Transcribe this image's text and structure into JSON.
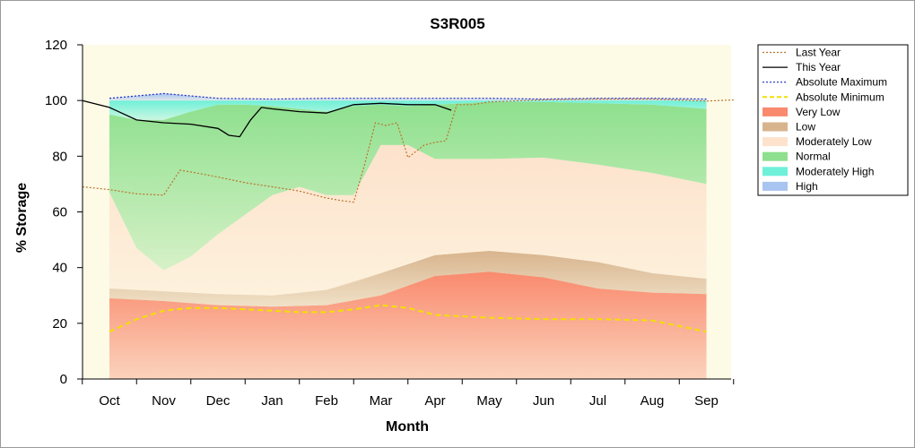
{
  "chart_data": {
    "type": "area",
    "title": "S3R005",
    "xlabel": "Month",
    "ylabel": "% Storage",
    "ylim": [
      0,
      120
    ],
    "yticks": [
      0,
      20,
      40,
      60,
      80,
      100,
      120
    ],
    "categories": [
      "Oct",
      "Nov",
      "Dec",
      "Jan",
      "Feb",
      "Mar",
      "Apr",
      "May",
      "Jun",
      "Jul",
      "Aug",
      "Sep"
    ],
    "x_units": "month index (0 = Oct, 11 = Sep)",
    "legend_position": "right",
    "bands": [
      {
        "name": "Very Low",
        "color": "#f98a6e",
        "x": [
          0,
          1,
          2,
          3,
          4,
          5,
          6,
          7,
          8,
          9,
          10,
          11
        ],
        "lower": [
          0,
          0,
          0,
          0,
          0,
          0,
          0,
          0,
          0,
          0,
          0,
          0
        ],
        "upper": [
          29,
          28,
          26.5,
          26,
          26.5,
          30,
          37,
          38.5,
          36.5,
          32.5,
          31,
          30.5
        ]
      },
      {
        "name": "Low",
        "color": "#d8b48e",
        "x": [
          0,
          1,
          2,
          3,
          4,
          5,
          6,
          7,
          8,
          9,
          10,
          11
        ],
        "lower": [
          29,
          28,
          26.5,
          26,
          26.5,
          30,
          37,
          38.5,
          36.5,
          32.5,
          31,
          30.5
        ],
        "upper": [
          32.5,
          31.5,
          30.5,
          30,
          32,
          38,
          44.5,
          46,
          44.5,
          42,
          38,
          36
        ]
      },
      {
        "name": "Moderately Low",
        "color": "#fde2cc",
        "x": [
          0,
          0.5,
          1,
          1.5,
          2,
          2.5,
          3,
          3.5,
          4,
          4.5,
          5,
          5.5,
          6,
          7,
          8,
          9,
          10,
          11
        ],
        "lower": [
          32.5,
          32,
          31.5,
          31,
          30.5,
          30.2,
          30,
          30.8,
          32,
          34.5,
          38,
          41.5,
          44.5,
          46,
          44.5,
          42,
          38,
          36
        ],
        "upper": [
          67,
          47,
          39,
          44,
          52,
          59,
          66,
          69,
          66,
          66,
          84,
          84,
          79,
          79,
          79.5,
          77,
          74,
          70
        ]
      },
      {
        "name": "Normal",
        "color": "#8ee08e",
        "x": [
          0,
          0.5,
          1,
          1.5,
          2,
          2.5,
          3,
          3.5,
          4,
          4.5,
          5,
          5.5,
          6,
          7,
          8,
          9,
          10,
          11
        ],
        "lower": [
          67,
          47,
          39,
          44,
          52,
          59,
          66,
          69,
          66,
          66,
          84,
          84,
          79,
          79,
          79.5,
          77,
          74,
          70
        ],
        "upper": [
          95,
          93,
          93,
          96,
          98.5,
          98.5,
          98,
          97,
          96,
          98,
          98.5,
          98,
          98.5,
          99.5,
          99.5,
          99,
          98.5,
          97
        ]
      },
      {
        "name": "Moderately High",
        "color": "#6ff0d8",
        "x": [
          0,
          0.5,
          1,
          1.5,
          2,
          2.5,
          3,
          3.5,
          4,
          4.5,
          5,
          5.5,
          6,
          7,
          8,
          9,
          10,
          11
        ],
        "lower": [
          95,
          93,
          93,
          96,
          98.5,
          98.5,
          98,
          97,
          96,
          98,
          98.5,
          98,
          98.5,
          99.5,
          99.5,
          99,
          98.5,
          97
        ],
        "upper": [
          100,
          100,
          100,
          100,
          100,
          100,
          100,
          100,
          100,
          100,
          100,
          100,
          100,
          100,
          100,
          100,
          100,
          100
        ]
      },
      {
        "name": "High",
        "color": "#a8c4f0",
        "x": [
          0,
          1,
          2,
          3,
          4,
          5,
          6,
          7,
          8,
          9,
          10,
          11
        ],
        "lower": [
          100,
          100,
          100,
          100,
          100,
          100,
          100,
          100,
          100,
          100,
          100,
          100
        ],
        "upper": [
          100.8,
          102.5,
          100.8,
          100.5,
          100.8,
          100.8,
          100.8,
          100.8,
          100.5,
          100.8,
          100.8,
          100.5
        ]
      }
    ],
    "series": [
      {
        "name": "Last Year",
        "color": "#b8742c",
        "style": "dotted",
        "x": [
          -0.5,
          0,
          0.5,
          1,
          1.3,
          1.6,
          2,
          2.5,
          3,
          3.5,
          4,
          4.3,
          4.5,
          4.7,
          4.9,
          5.1,
          5.3,
          5.5,
          5.8,
          6,
          6.2,
          6.4,
          6.7,
          7,
          8,
          9,
          10,
          11,
          11.5
        ],
        "y": [
          69,
          68,
          66.5,
          66,
          75,
          74,
          72.5,
          70.5,
          69,
          67.5,
          65,
          64,
          63.5,
          77,
          92,
          91,
          92,
          79.5,
          84,
          85,
          85.5,
          98.5,
          98.5,
          99.5,
          100.2,
          100.5,
          100.5,
          99.8,
          100.2
        ]
      },
      {
        "name": "This Year",
        "color": "#000000",
        "style": "solid",
        "x": [
          -0.5,
          0,
          0.5,
          1,
          1.5,
          2,
          2.2,
          2.4,
          2.6,
          2.8,
          3,
          3.5,
          4,
          4.5,
          5,
          5.5,
          6,
          6.3
        ],
        "y": [
          100,
          97.5,
          93,
          92,
          91.5,
          90,
          87.5,
          87,
          93,
          97.5,
          97,
          96,
          95.5,
          98.5,
          99,
          98.5,
          98.5,
          96.5
        ]
      },
      {
        "name": "Absolute Maximum",
        "color": "#1a2ac8",
        "style": "dotted",
        "x": [
          0,
          1,
          2,
          3,
          4,
          5,
          6,
          7,
          8,
          9,
          10,
          11
        ],
        "y": [
          100.8,
          102.5,
          100.8,
          100.5,
          100.8,
          100.8,
          100.8,
          100.8,
          100.5,
          100.8,
          100.8,
          100.5
        ]
      },
      {
        "name": "Absolute Minimum",
        "color": "#f2e000",
        "style": "dashed",
        "x": [
          0,
          0.5,
          1,
          1.5,
          2,
          2.5,
          3,
          3.5,
          4,
          4.5,
          5,
          5.5,
          6,
          7,
          8,
          9,
          10,
          11
        ],
        "y": [
          17,
          21.5,
          24.5,
          25.5,
          25.5,
          25,
          24.5,
          24,
          24,
          25,
          26.5,
          25.5,
          23,
          22,
          21.5,
          21.5,
          21,
          17
        ]
      }
    ],
    "legend": [
      {
        "label": "Last Year",
        "kind": "line",
        "color": "#b8742c",
        "style": "dotted"
      },
      {
        "label": "This Year",
        "kind": "line",
        "color": "#000000",
        "style": "solid"
      },
      {
        "label": "Absolute Maximum",
        "kind": "line",
        "color": "#1a2ac8",
        "style": "dotted"
      },
      {
        "label": "Absolute Minimum",
        "kind": "line",
        "color": "#f2e000",
        "style": "dashed"
      },
      {
        "label": "Very Low",
        "kind": "patch",
        "color": "#f98a6e"
      },
      {
        "label": "Low",
        "kind": "patch",
        "color": "#d8b48e"
      },
      {
        "label": "Moderately Low",
        "kind": "patch",
        "color": "#fde2cc"
      },
      {
        "label": "Normal",
        "kind": "patch",
        "color": "#8ee08e"
      },
      {
        "label": "Moderately High",
        "kind": "patch",
        "color": "#6ff0d8"
      },
      {
        "label": "High",
        "kind": "patch",
        "color": "#a8c4f0"
      }
    ],
    "plot_background": "#fdfae6"
  }
}
